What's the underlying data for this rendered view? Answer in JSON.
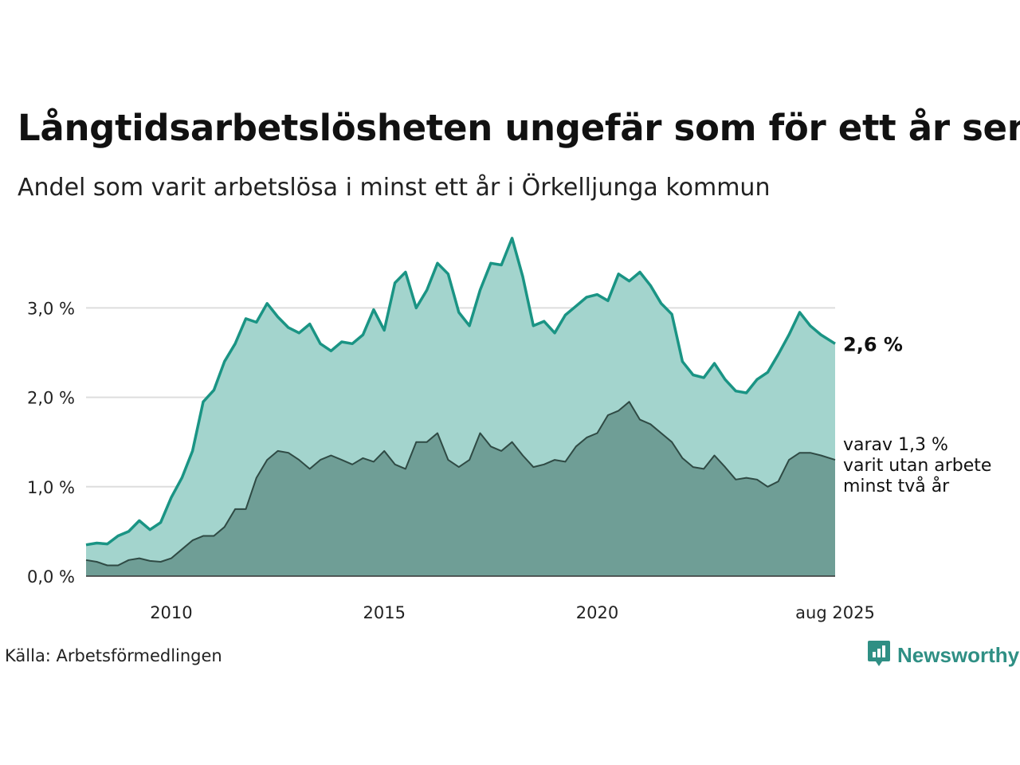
{
  "title": "Långtidsarbetslösheten ungefär som för ett år sen",
  "subtitle": "Andel som varit arbetslösa i minst ett år i Örkelljunga kommun",
  "source": "Källa: Arbetsförmedlingen",
  "brand": {
    "name": "Newsworthy",
    "icon": "newsworthy-logo-icon",
    "color": "#2f8f84"
  },
  "colors": {
    "main_line": "#1a9484",
    "main_fill": "#a3d4cd",
    "sub_line": "#2f4a44",
    "sub_fill": "#6f9e96",
    "grid": "#dddddd"
  },
  "annotations": {
    "main_end_label": "2,6 %",
    "sub_end_label_lines": [
      "varav 1,3 %",
      "varit utan arbete",
      "minst två år"
    ]
  },
  "chart_data": {
    "type": "area",
    "title": "Långtidsarbetslösheten ungefär som för ett år sen",
    "subtitle": "Andel som varit arbetslösa i minst ett år i Örkelljunga kommun",
    "xlabel": "",
    "ylabel": "",
    "x_range": [
      "2008-01",
      "2025-08"
    ],
    "ylim": [
      0,
      3.8
    ],
    "y_ticks": [
      0,
      1,
      2,
      3
    ],
    "y_tick_labels": [
      "0,0 %",
      "1,0 %",
      "2,0 %",
      "3,0 %"
    ],
    "x_ticks": [
      "2010",
      "2015",
      "2020",
      "aug 2025"
    ],
    "x_tick_dates": [
      "2010-01",
      "2015-01",
      "2020-01",
      "2025-08"
    ],
    "grid": true,
    "series": [
      {
        "key": "minst-ett-ar",
        "points": [
          [
            "2008-01",
            0.35
          ],
          [
            "2008-04",
            0.37
          ],
          [
            "2008-07",
            0.36
          ],
          [
            "2008-10",
            0.45
          ],
          [
            "2009-01",
            0.5
          ],
          [
            "2009-04",
            0.62
          ],
          [
            "2009-07",
            0.52
          ],
          [
            "2009-10",
            0.6
          ],
          [
            "2010-01",
            0.88
          ],
          [
            "2010-04",
            1.1
          ],
          [
            "2010-07",
            1.4
          ],
          [
            "2010-10",
            1.95
          ],
          [
            "2011-01",
            2.08
          ],
          [
            "2011-04",
            2.4
          ],
          [
            "2011-07",
            2.6
          ],
          [
            "2011-10",
            2.88
          ],
          [
            "2012-01",
            2.84
          ],
          [
            "2012-04",
            3.05
          ],
          [
            "2012-07",
            2.9
          ],
          [
            "2012-10",
            2.78
          ],
          [
            "2013-01",
            2.72
          ],
          [
            "2013-04",
            2.82
          ],
          [
            "2013-07",
            2.6
          ],
          [
            "2013-10",
            2.52
          ],
          [
            "2014-01",
            2.62
          ],
          [
            "2014-04",
            2.6
          ],
          [
            "2014-07",
            2.7
          ],
          [
            "2014-10",
            2.98
          ],
          [
            "2015-01",
            2.75
          ],
          [
            "2015-04",
            3.28
          ],
          [
            "2015-07",
            3.4
          ],
          [
            "2015-10",
            3.0
          ],
          [
            "2016-01",
            3.2
          ],
          [
            "2016-04",
            3.5
          ],
          [
            "2016-07",
            3.38
          ],
          [
            "2016-10",
            2.95
          ],
          [
            "2017-01",
            2.8
          ],
          [
            "2017-04",
            3.2
          ],
          [
            "2017-07",
            3.5
          ],
          [
            "2017-10",
            3.48
          ],
          [
            "2018-01",
            3.78
          ],
          [
            "2018-04",
            3.35
          ],
          [
            "2018-07",
            2.8
          ],
          [
            "2018-10",
            2.85
          ],
          [
            "2019-01",
            2.72
          ],
          [
            "2019-04",
            2.92
          ],
          [
            "2019-07",
            3.02
          ],
          [
            "2019-10",
            3.12
          ],
          [
            "2020-01",
            3.15
          ],
          [
            "2020-04",
            3.08
          ],
          [
            "2020-07",
            3.38
          ],
          [
            "2020-10",
            3.3
          ],
          [
            "2021-01",
            3.4
          ],
          [
            "2021-04",
            3.25
          ],
          [
            "2021-07",
            3.05
          ],
          [
            "2021-10",
            2.93
          ],
          [
            "2022-01",
            2.4
          ],
          [
            "2022-04",
            2.25
          ],
          [
            "2022-07",
            2.22
          ],
          [
            "2022-10",
            2.38
          ],
          [
            "2023-01",
            2.2
          ],
          [
            "2023-04",
            2.07
          ],
          [
            "2023-07",
            2.05
          ],
          [
            "2023-10",
            2.2
          ],
          [
            "2024-01",
            2.28
          ],
          [
            "2024-04",
            2.48
          ],
          [
            "2024-07",
            2.7
          ],
          [
            "2024-10",
            2.95
          ],
          [
            "2025-01",
            2.8
          ],
          [
            "2025-04",
            2.7
          ],
          [
            "2025-08",
            2.6
          ]
        ]
      },
      {
        "key": "minst-tva-ar",
        "points": [
          [
            "2008-01",
            0.18
          ],
          [
            "2008-04",
            0.16
          ],
          [
            "2008-07",
            0.12
          ],
          [
            "2008-10",
            0.12
          ],
          [
            "2009-01",
            0.18
          ],
          [
            "2009-04",
            0.2
          ],
          [
            "2009-07",
            0.17
          ],
          [
            "2009-10",
            0.16
          ],
          [
            "2010-01",
            0.2
          ],
          [
            "2010-04",
            0.3
          ],
          [
            "2010-07",
            0.4
          ],
          [
            "2010-10",
            0.45
          ],
          [
            "2011-01",
            0.45
          ],
          [
            "2011-04",
            0.55
          ],
          [
            "2011-07",
            0.75
          ],
          [
            "2011-10",
            0.75
          ],
          [
            "2012-01",
            1.1
          ],
          [
            "2012-04",
            1.3
          ],
          [
            "2012-07",
            1.4
          ],
          [
            "2012-10",
            1.38
          ],
          [
            "2013-01",
            1.3
          ],
          [
            "2013-04",
            1.2
          ],
          [
            "2013-07",
            1.3
          ],
          [
            "2013-10",
            1.35
          ],
          [
            "2014-01",
            1.3
          ],
          [
            "2014-04",
            1.25
          ],
          [
            "2014-07",
            1.32
          ],
          [
            "2014-10",
            1.28
          ],
          [
            "2015-01",
            1.4
          ],
          [
            "2015-04",
            1.25
          ],
          [
            "2015-07",
            1.2
          ],
          [
            "2015-10",
            1.5
          ],
          [
            "2016-01",
            1.5
          ],
          [
            "2016-04",
            1.6
          ],
          [
            "2016-07",
            1.3
          ],
          [
            "2016-10",
            1.22
          ],
          [
            "2017-01",
            1.3
          ],
          [
            "2017-04",
            1.6
          ],
          [
            "2017-07",
            1.45
          ],
          [
            "2017-10",
            1.4
          ],
          [
            "2018-01",
            1.5
          ],
          [
            "2018-04",
            1.35
          ],
          [
            "2018-07",
            1.22
          ],
          [
            "2018-10",
            1.25
          ],
          [
            "2019-01",
            1.3
          ],
          [
            "2019-04",
            1.28
          ],
          [
            "2019-07",
            1.45
          ],
          [
            "2019-10",
            1.55
          ],
          [
            "2020-01",
            1.6
          ],
          [
            "2020-04",
            1.8
          ],
          [
            "2020-07",
            1.85
          ],
          [
            "2020-10",
            1.95
          ],
          [
            "2021-01",
            1.75
          ],
          [
            "2021-04",
            1.7
          ],
          [
            "2021-07",
            1.6
          ],
          [
            "2021-10",
            1.5
          ],
          [
            "2022-01",
            1.32
          ],
          [
            "2022-04",
            1.22
          ],
          [
            "2022-07",
            1.2
          ],
          [
            "2022-10",
            1.35
          ],
          [
            "2023-01",
            1.22
          ],
          [
            "2023-04",
            1.08
          ],
          [
            "2023-07",
            1.1
          ],
          [
            "2023-10",
            1.08
          ],
          [
            "2024-01",
            1.0
          ],
          [
            "2024-04",
            1.06
          ],
          [
            "2024-07",
            1.3
          ],
          [
            "2024-10",
            1.38
          ],
          [
            "2025-01",
            1.38
          ],
          [
            "2025-04",
            1.35
          ],
          [
            "2025-08",
            1.3
          ]
        ]
      }
    ]
  }
}
